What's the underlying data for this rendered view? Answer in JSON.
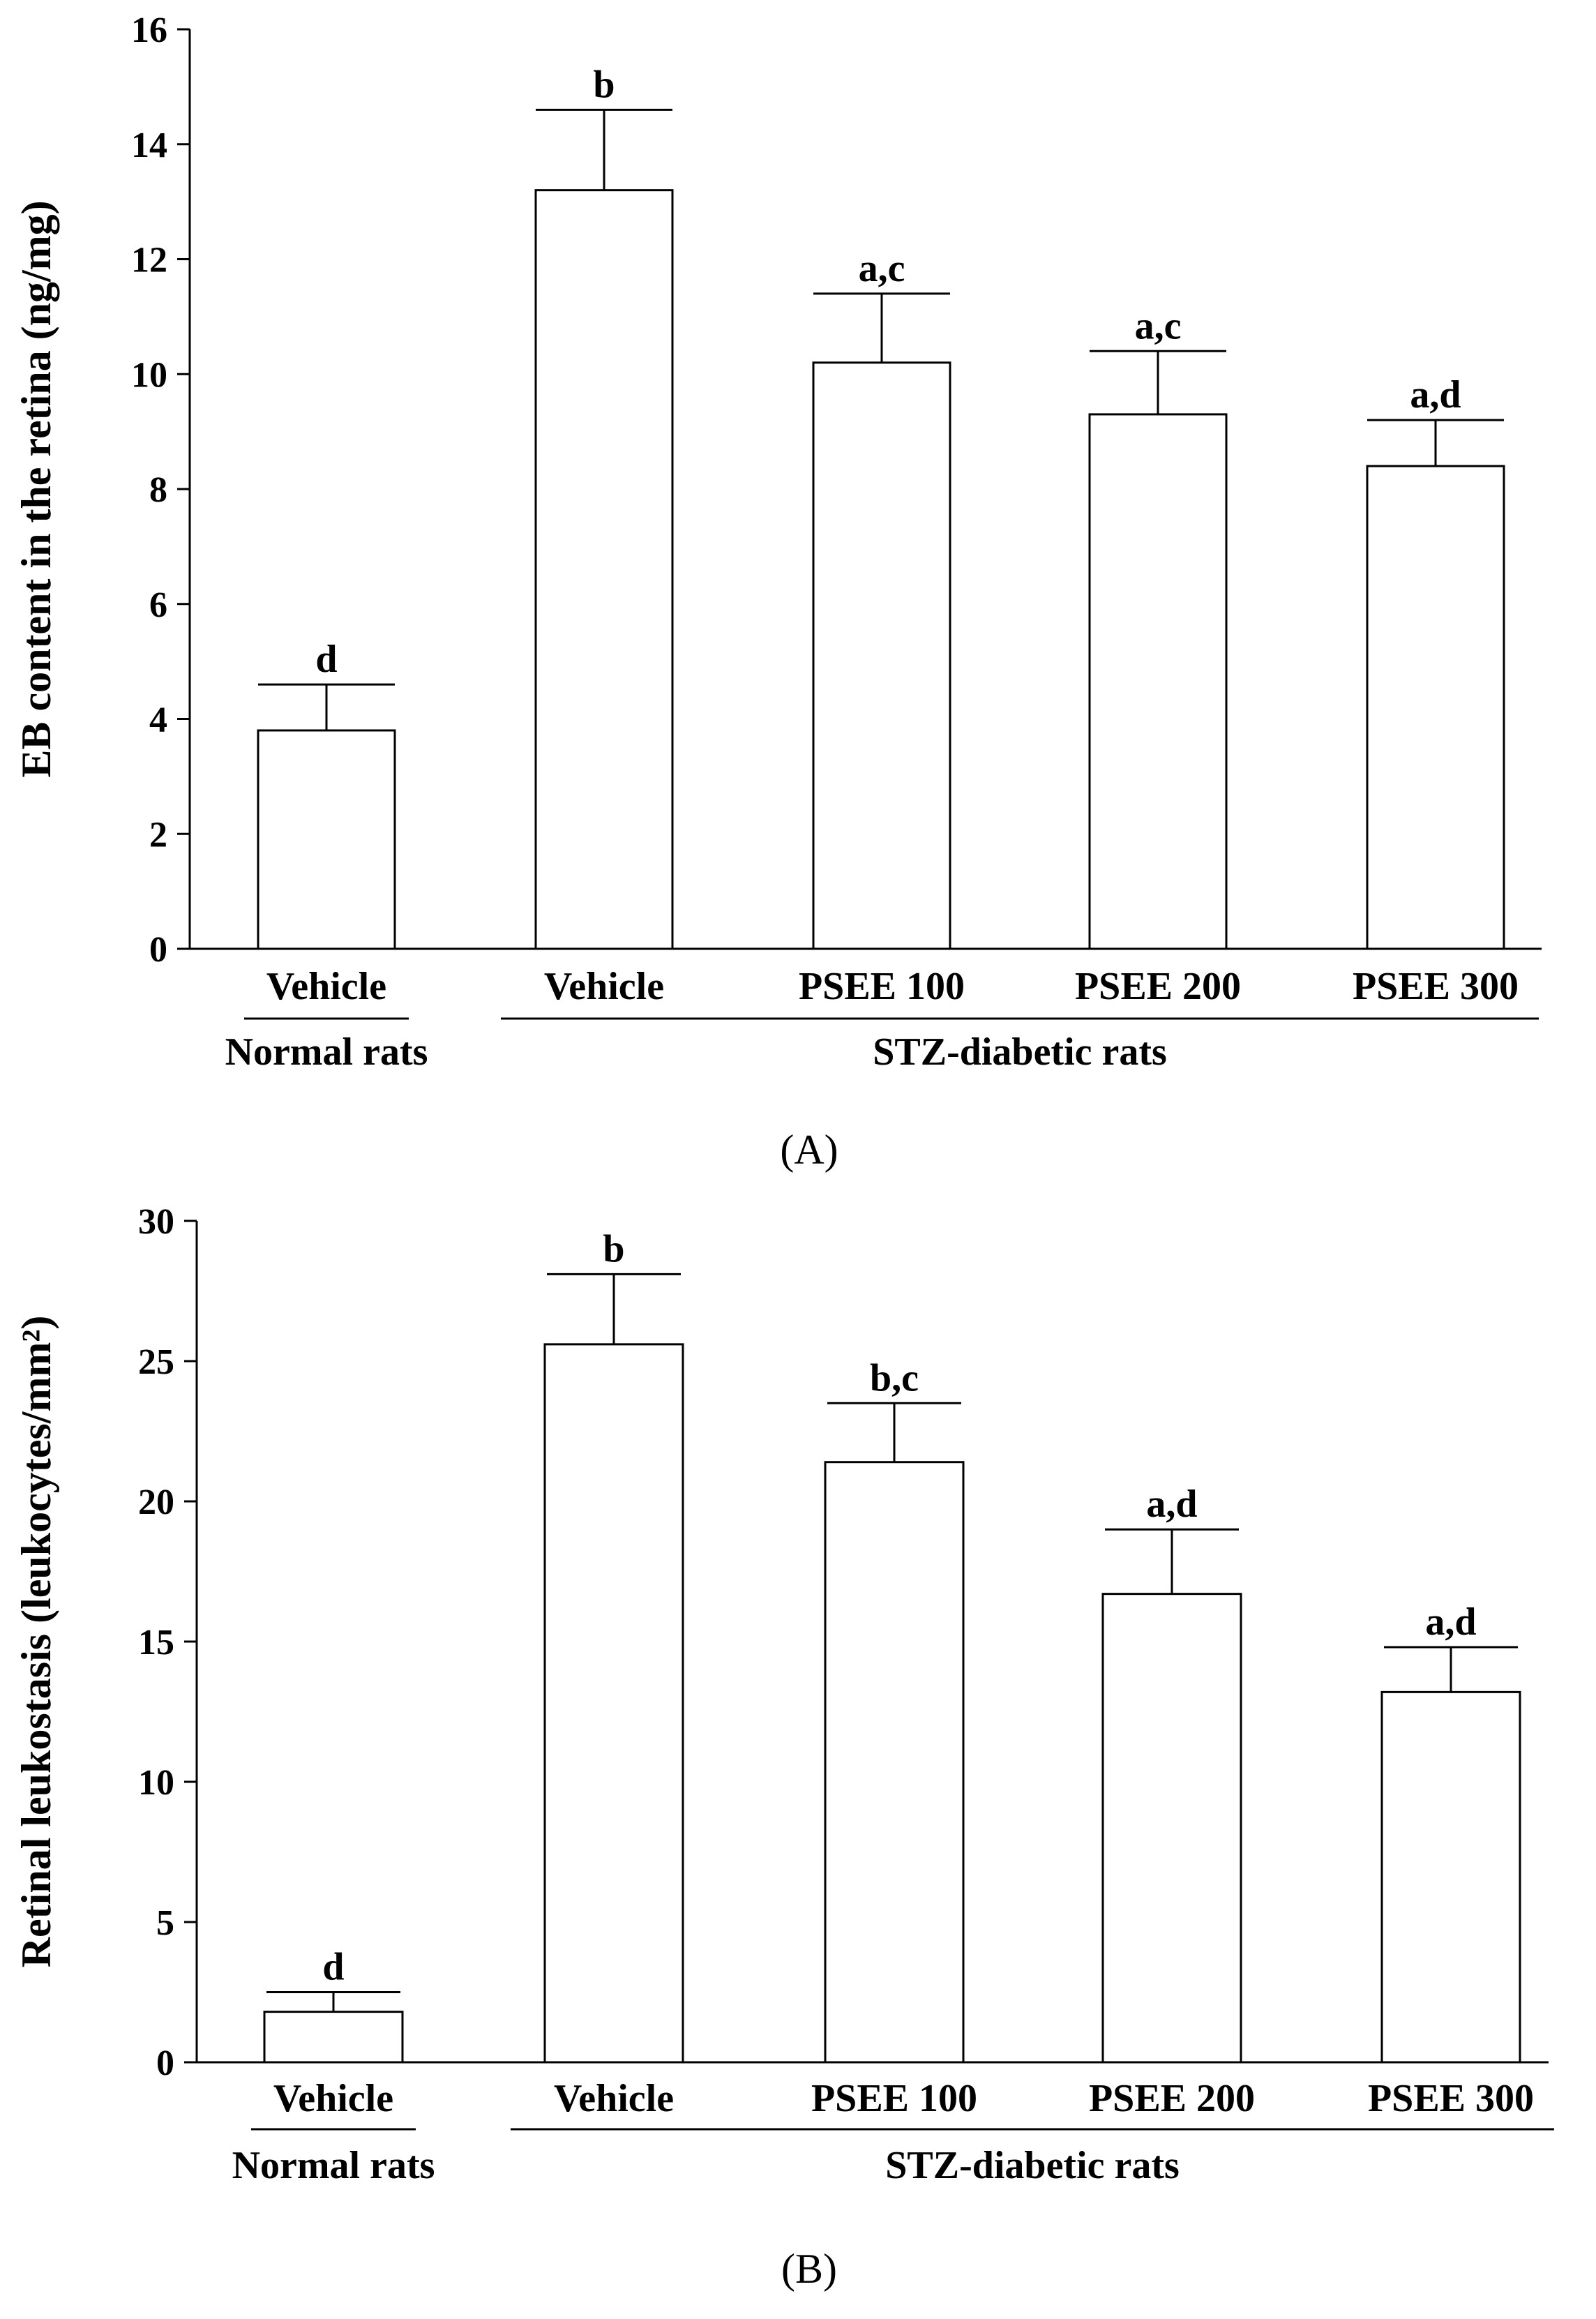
{
  "chart_data": [
    {
      "type": "bar",
      "panel_label": "(A)",
      "ylabel": "EB content in the retina (ng/mg)",
      "ylim": [
        0,
        16
      ],
      "yticks": [
        0,
        2,
        4,
        6,
        8,
        10,
        12,
        14,
        16
      ],
      "categories": [
        "Vehicle",
        "Vehicle",
        "PSEE 100",
        "PSEE 200",
        "PSEE 300"
      ],
      "groups": [
        {
          "label": "Normal rats",
          "members": [
            0
          ]
        },
        {
          "label": "STZ-diabetic rats",
          "members": [
            1,
            2,
            3,
            4
          ]
        }
      ],
      "values": [
        3.8,
        13.2,
        10.2,
        9.3,
        8.4
      ],
      "errors": [
        0.8,
        1.4,
        1.2,
        1.1,
        0.8
      ],
      "significance": [
        "d",
        "b",
        "a,c",
        "a,c",
        "a,d"
      ]
    },
    {
      "type": "bar",
      "panel_label": "(B)",
      "ylabel": "Retinal leukostasis (leukocytes/mm²)",
      "ylim": [
        0,
        30
      ],
      "yticks": [
        0,
        5,
        10,
        15,
        20,
        25,
        30
      ],
      "categories": [
        "Vehicle",
        "Vehicle",
        "PSEE 100",
        "PSEE 200",
        "PSEE 300"
      ],
      "groups": [
        {
          "label": "Normal rats",
          "members": [
            0
          ]
        },
        {
          "label": "STZ-diabetic rats",
          "members": [
            1,
            2,
            3,
            4
          ]
        }
      ],
      "values": [
        1.8,
        25.6,
        21.4,
        16.7,
        13.2
      ],
      "errors": [
        0.7,
        2.5,
        2.1,
        2.3,
        1.6
      ],
      "significance": [
        "d",
        "b",
        "b,c",
        "a,d",
        "a,d"
      ]
    }
  ]
}
